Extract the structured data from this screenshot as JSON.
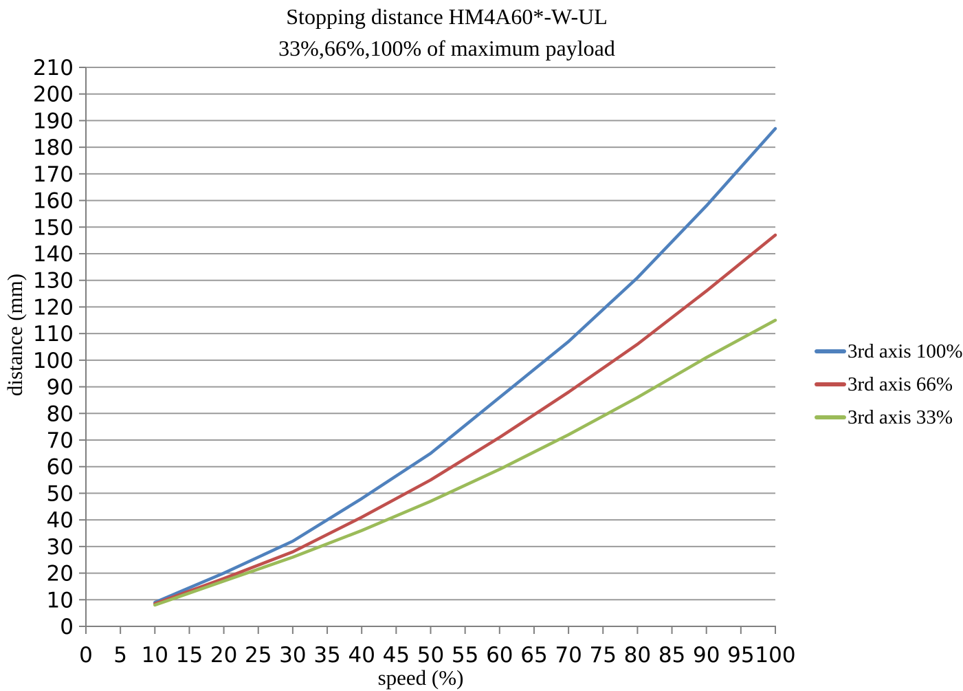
{
  "chart_data": {
    "type": "line",
    "title": "Stopping distance HM4A60*-W-UL",
    "subtitle": "33%,66%,100% of maximum payload",
    "xlabel": "speed (%)",
    "ylabel": "distance (mm)",
    "xlim": [
      0,
      100
    ],
    "ylim": [
      0,
      210
    ],
    "xtick_step": 5,
    "ytick_step": 10,
    "xticks": [
      0,
      5,
      10,
      15,
      20,
      25,
      30,
      35,
      40,
      45,
      50,
      55,
      60,
      65,
      70,
      75,
      80,
      85,
      90,
      95,
      100
    ],
    "yticks": [
      0,
      10,
      20,
      30,
      40,
      50,
      60,
      70,
      80,
      90,
      100,
      110,
      120,
      130,
      140,
      150,
      160,
      170,
      180,
      190,
      200,
      210
    ],
    "grid": "horizontal-only",
    "legend_position": "right",
    "x": [
      10,
      20,
      30,
      40,
      50,
      60,
      70,
      80,
      90,
      100
    ],
    "series": [
      {
        "name": "3rd axis 100%",
        "color": "#4F81BD",
        "values": [
          9,
          20,
          32,
          48,
          65,
          86,
          107,
          131,
          158,
          187
        ]
      },
      {
        "name": "3rd axis 66%",
        "color": "#C0504D",
        "values": [
          8.5,
          18,
          28,
          41,
          55,
          71,
          88,
          106,
          126,
          147
        ]
      },
      {
        "name": "3rd axis 33%",
        "color": "#9BBB59",
        "values": [
          8,
          17,
          26,
          36,
          47,
          59,
          72,
          86,
          101,
          115
        ]
      }
    ],
    "grid_color": "#9B9B9B",
    "axis_color": "#808080"
  }
}
